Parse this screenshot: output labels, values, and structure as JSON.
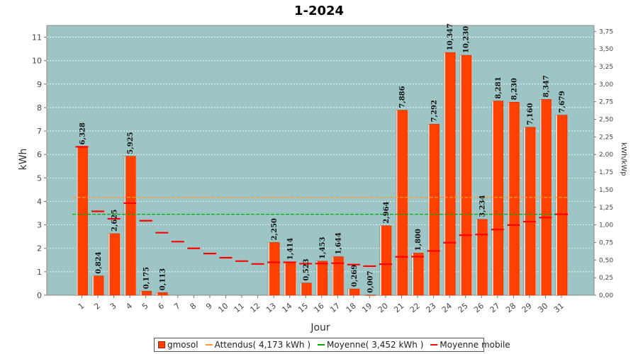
{
  "chart_data": {
    "type": "bar",
    "title": "1-2024",
    "xlabel": "Jour",
    "ylabel": "kWh",
    "y2label": "kWh/kWp",
    "ylim": [
      0,
      11.5
    ],
    "y2lim": [
      0,
      3.8333
    ],
    "yticks": [
      "0",
      "1",
      "2",
      "3",
      "4",
      "5",
      "6",
      "7",
      "8",
      "9",
      "10",
      "11"
    ],
    "y2ticks": [
      "0,00",
      "0,25",
      "0,50",
      "0,75",
      "1,00",
      "1,25",
      "1,50",
      "1,75",
      "2,00",
      "2,25",
      "2,50",
      "2,75",
      "3,00",
      "3,25",
      "3,50",
      "3,75"
    ],
    "categories": [
      "1",
      "2",
      "3",
      "4",
      "5",
      "6",
      "7",
      "8",
      "9",
      "10",
      "11",
      "12",
      "13",
      "14",
      "15",
      "16",
      "17",
      "18",
      "19",
      "20",
      "21",
      "22",
      "23",
      "24",
      "25",
      "26",
      "27",
      "28",
      "29",
      "30",
      "31"
    ],
    "series": [
      {
        "name": "gmosol",
        "type": "bar",
        "color": "#ff4000",
        "values": [
          6.328,
          0.824,
          2.625,
          5.925,
          0.175,
          0.113,
          0,
          0,
          0,
          0,
          0,
          0,
          2.25,
          1.414,
          0.523,
          1.453,
          1.644,
          0.269,
          0.007,
          2.964,
          7.886,
          1.8,
          7.292,
          10.347,
          10.23,
          3.234,
          8.281,
          8.23,
          7.16,
          8.347,
          7.679
        ],
        "labels": [
          "6,328",
          "0,824",
          "2,625",
          "5,925",
          "0,175",
          "0,113",
          "",
          "",
          "",
          "",
          "",
          "",
          "2,250",
          "1,414",
          "0,523",
          "1,453",
          "1,644",
          "0,269",
          "0,007",
          "2,964",
          "7,886",
          "1,800",
          "7,292",
          "10,347",
          "10,230",
          "3,234",
          "8,281",
          "8,230",
          "7,160",
          "8,347",
          "7,679"
        ]
      },
      {
        "name": "Attendus( 4,173 kWh )",
        "type": "hline",
        "color": "#ff9933",
        "value": 4.173
      },
      {
        "name": "Moyenne( 3,452 kWh )",
        "type": "hline",
        "color": "#00aa00",
        "value": 3.452
      },
      {
        "name": "Moyenne mobile",
        "type": "marker",
        "color": "#ff0000",
        "values": [
          6.328,
          3.576,
          3.259,
          3.926,
          3.176,
          2.665,
          2.284,
          1.999,
          1.777,
          1.599,
          1.454,
          1.333,
          1.403,
          1.404,
          1.345,
          1.351,
          1.368,
          1.307,
          1.239,
          1.325,
          1.637,
          1.644,
          1.889,
          2.242,
          2.562,
          2.588,
          2.799,
          2.993,
          3.137,
          3.311,
          3.452
        ]
      }
    ],
    "grid": true,
    "legend_position": "bottom"
  }
}
